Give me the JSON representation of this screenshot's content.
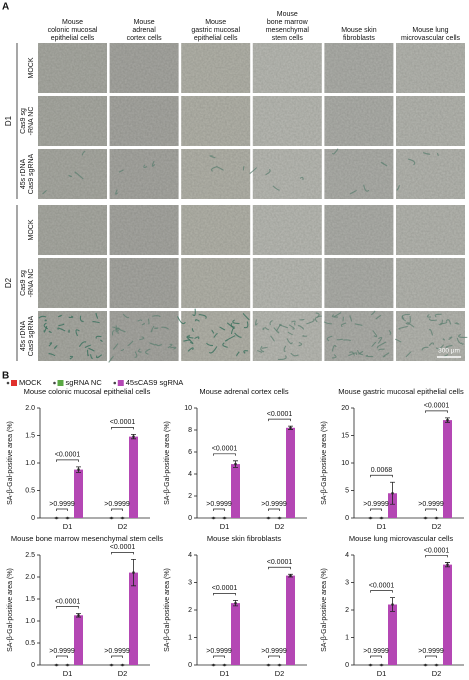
{
  "panel_a": {
    "label": "A",
    "columns": [
      [
        "Mouse",
        "colonic mucosal",
        "epithelial cells"
      ],
      [
        "Mouse",
        "adrenal",
        "cortex cells"
      ],
      [
        "Mouse",
        "gastric mucosal",
        "epithelial cells"
      ],
      [
        "Mouse",
        "bone marrow",
        "mesenchymal",
        "stem cells"
      ],
      [
        "Mouse skin",
        "fibroblasts"
      ],
      [
        "Mouse lung",
        "microvascular cells"
      ]
    ],
    "groups": [
      {
        "label": "D1",
        "rows": [
          [
            "MOCK"
          ],
          [
            "Cas9 sg",
            "-RNA NC"
          ],
          [
            "45s rDNA",
            "Cas9 sgRNA"
          ]
        ]
      },
      {
        "label": "D2",
        "rows": [
          [
            "MOCK"
          ],
          [
            "Cas9 sg",
            "-RNA NC"
          ],
          [
            "45s rDNA",
            "Cas9 sgRNA"
          ]
        ]
      }
    ],
    "scale_bar": "300 µm"
  },
  "panel_b": {
    "label": "B"
  },
  "chart_data": [
    {
      "type": "bar",
      "title": "Mouse colonic mucosal epithelial cells",
      "ylabel": "SA-β-Gal-positive area (%)",
      "categories": [
        "D1",
        "D2"
      ],
      "series": [
        {
          "name": "MOCK",
          "color": "#e0302c",
          "values": [
            0,
            0
          ],
          "errors": [
            0,
            0
          ]
        },
        {
          "name": "sgRNA NC",
          "color": "#5aa843",
          "values": [
            0,
            0
          ],
          "errors": [
            0,
            0
          ]
        },
        {
          "name": "45sCAS9 sgRNA",
          "color": "#b447b4",
          "values": [
            0.88,
            1.48
          ],
          "errors": [
            0.05,
            0.04
          ]
        }
      ],
      "ylim": [
        0,
        2
      ],
      "yticks": [
        0,
        0.5,
        {
          "value": 1,
          "label": "1.0"
        },
        1.5,
        {
          "value": 2,
          "label": "2.0"
        }
      ],
      "p_values": [
        [
          ">0.9999",
          "<0.0001"
        ],
        [
          ">0.9999",
          "<0.0001"
        ]
      ]
    },
    {
      "type": "bar",
      "title": "Mouse adrenal cortex cells",
      "ylabel": "SA-β-Gal-positive area (%)",
      "categories": [
        "D1",
        "D2"
      ],
      "series": [
        {
          "name": "MOCK",
          "color": "#e0302c",
          "values": [
            0,
            0
          ],
          "errors": [
            0,
            0
          ]
        },
        {
          "name": "sgRNA NC",
          "color": "#5aa843",
          "values": [
            0,
            0
          ],
          "errors": [
            0,
            0
          ]
        },
        {
          "name": "45sCAS9 sgRNA",
          "color": "#b447b4",
          "values": [
            4.9,
            8.2
          ],
          "errors": [
            0.3,
            0.15
          ]
        }
      ],
      "ylim": [
        0,
        10
      ],
      "yticks": [
        0,
        2,
        4,
        6,
        8,
        10
      ],
      "p_values": [
        [
          ">0.9999",
          "<0.0001"
        ],
        [
          ">0.9999",
          "<0.0001"
        ]
      ]
    },
    {
      "type": "bar",
      "title": "Mouse gastric mucosal epithelial cells",
      "ylabel": "SA-β-Gal-positive area (%)",
      "categories": [
        "D1",
        "D2"
      ],
      "series": [
        {
          "name": "MOCK",
          "color": "#e0302c",
          "values": [
            0,
            0
          ],
          "errors": [
            0,
            0
          ]
        },
        {
          "name": "sgRNA NC",
          "color": "#5aa843",
          "values": [
            0,
            0
          ],
          "errors": [
            0,
            0
          ]
        },
        {
          "name": "45sCAS9 sgRNA",
          "color": "#b447b4",
          "values": [
            4.5,
            17.8
          ],
          "errors": [
            2,
            0.4
          ]
        }
      ],
      "ylim": [
        0,
        20
      ],
      "yticks": [
        0,
        5,
        10,
        15,
        20
      ],
      "p_values": [
        [
          ">0.9999",
          "0.0068"
        ],
        [
          ">0.9999",
          "<0.0001"
        ]
      ]
    },
    {
      "type": "bar",
      "title": "Mouse bone marrow mesenchymal stem cells",
      "ylabel": "SA-β-Gal-positive area (%)",
      "categories": [
        "D1",
        "D2"
      ],
      "series": [
        {
          "name": "MOCK",
          "color": "#e0302c",
          "values": [
            0,
            0
          ],
          "errors": [
            0,
            0
          ]
        },
        {
          "name": "sgRNA NC",
          "color": "#5aa843",
          "values": [
            0,
            0
          ],
          "errors": [
            0,
            0
          ]
        },
        {
          "name": "45sCAS9 sgRNA",
          "color": "#b447b4",
          "values": [
            1.13,
            2.1
          ],
          "errors": [
            0.04,
            0.3
          ]
        }
      ],
      "ylim": [
        0,
        2.5
      ],
      "yticks": [
        0,
        0.5,
        {
          "value": 1,
          "label": "1.0"
        },
        1.5,
        {
          "value": 2,
          "label": "2.0"
        },
        2.5
      ],
      "p_values": [
        [
          ">0.9999",
          "<0.0001"
        ],
        [
          ">0.9999",
          "<0.0001"
        ]
      ]
    },
    {
      "type": "bar",
      "title": "Mouse skin fibroblasts",
      "ylabel": "SA-β-Gal-positive area (%)",
      "categories": [
        "D1",
        "D2"
      ],
      "series": [
        {
          "name": "MOCK",
          "color": "#e0302c",
          "values": [
            0,
            0
          ],
          "errors": [
            0,
            0
          ]
        },
        {
          "name": "sgRNA NC",
          "color": "#5aa843",
          "values": [
            0,
            0
          ],
          "errors": [
            0,
            0
          ]
        },
        {
          "name": "45sCAS9 sgRNA",
          "color": "#b447b4",
          "values": [
            2.25,
            3.25
          ],
          "errors": [
            0.1,
            0.05
          ]
        }
      ],
      "ylim": [
        0,
        4
      ],
      "yticks": [
        0,
        1,
        2,
        3,
        4
      ],
      "p_values": [
        [
          ">0.9999",
          "<0.0001"
        ],
        [
          ">0.9999",
          "<0.0001"
        ]
      ]
    },
    {
      "type": "bar",
      "title": "Mouse lung microvascular cells",
      "ylabel": "SA-β-Gal-positive area (%)",
      "categories": [
        "D1",
        "D2"
      ],
      "series": [
        {
          "name": "MOCK",
          "color": "#e0302c",
          "values": [
            0,
            0
          ],
          "errors": [
            0,
            0
          ]
        },
        {
          "name": "sgRNA NC",
          "color": "#5aa843",
          "values": [
            0,
            0
          ],
          "errors": [
            0,
            0
          ]
        },
        {
          "name": "45sCAS9 sgRNA",
          "color": "#b447b4",
          "values": [
            2.2,
            3.65
          ],
          "errors": [
            0.25,
            0.08
          ]
        }
      ],
      "ylim": [
        0,
        4
      ],
      "yticks": [
        0,
        1,
        2,
        3,
        4
      ],
      "p_values": [
        [
          ">0.9999",
          "<0.0001"
        ],
        [
          ">0.9999",
          "<0.0001"
        ]
      ]
    }
  ]
}
